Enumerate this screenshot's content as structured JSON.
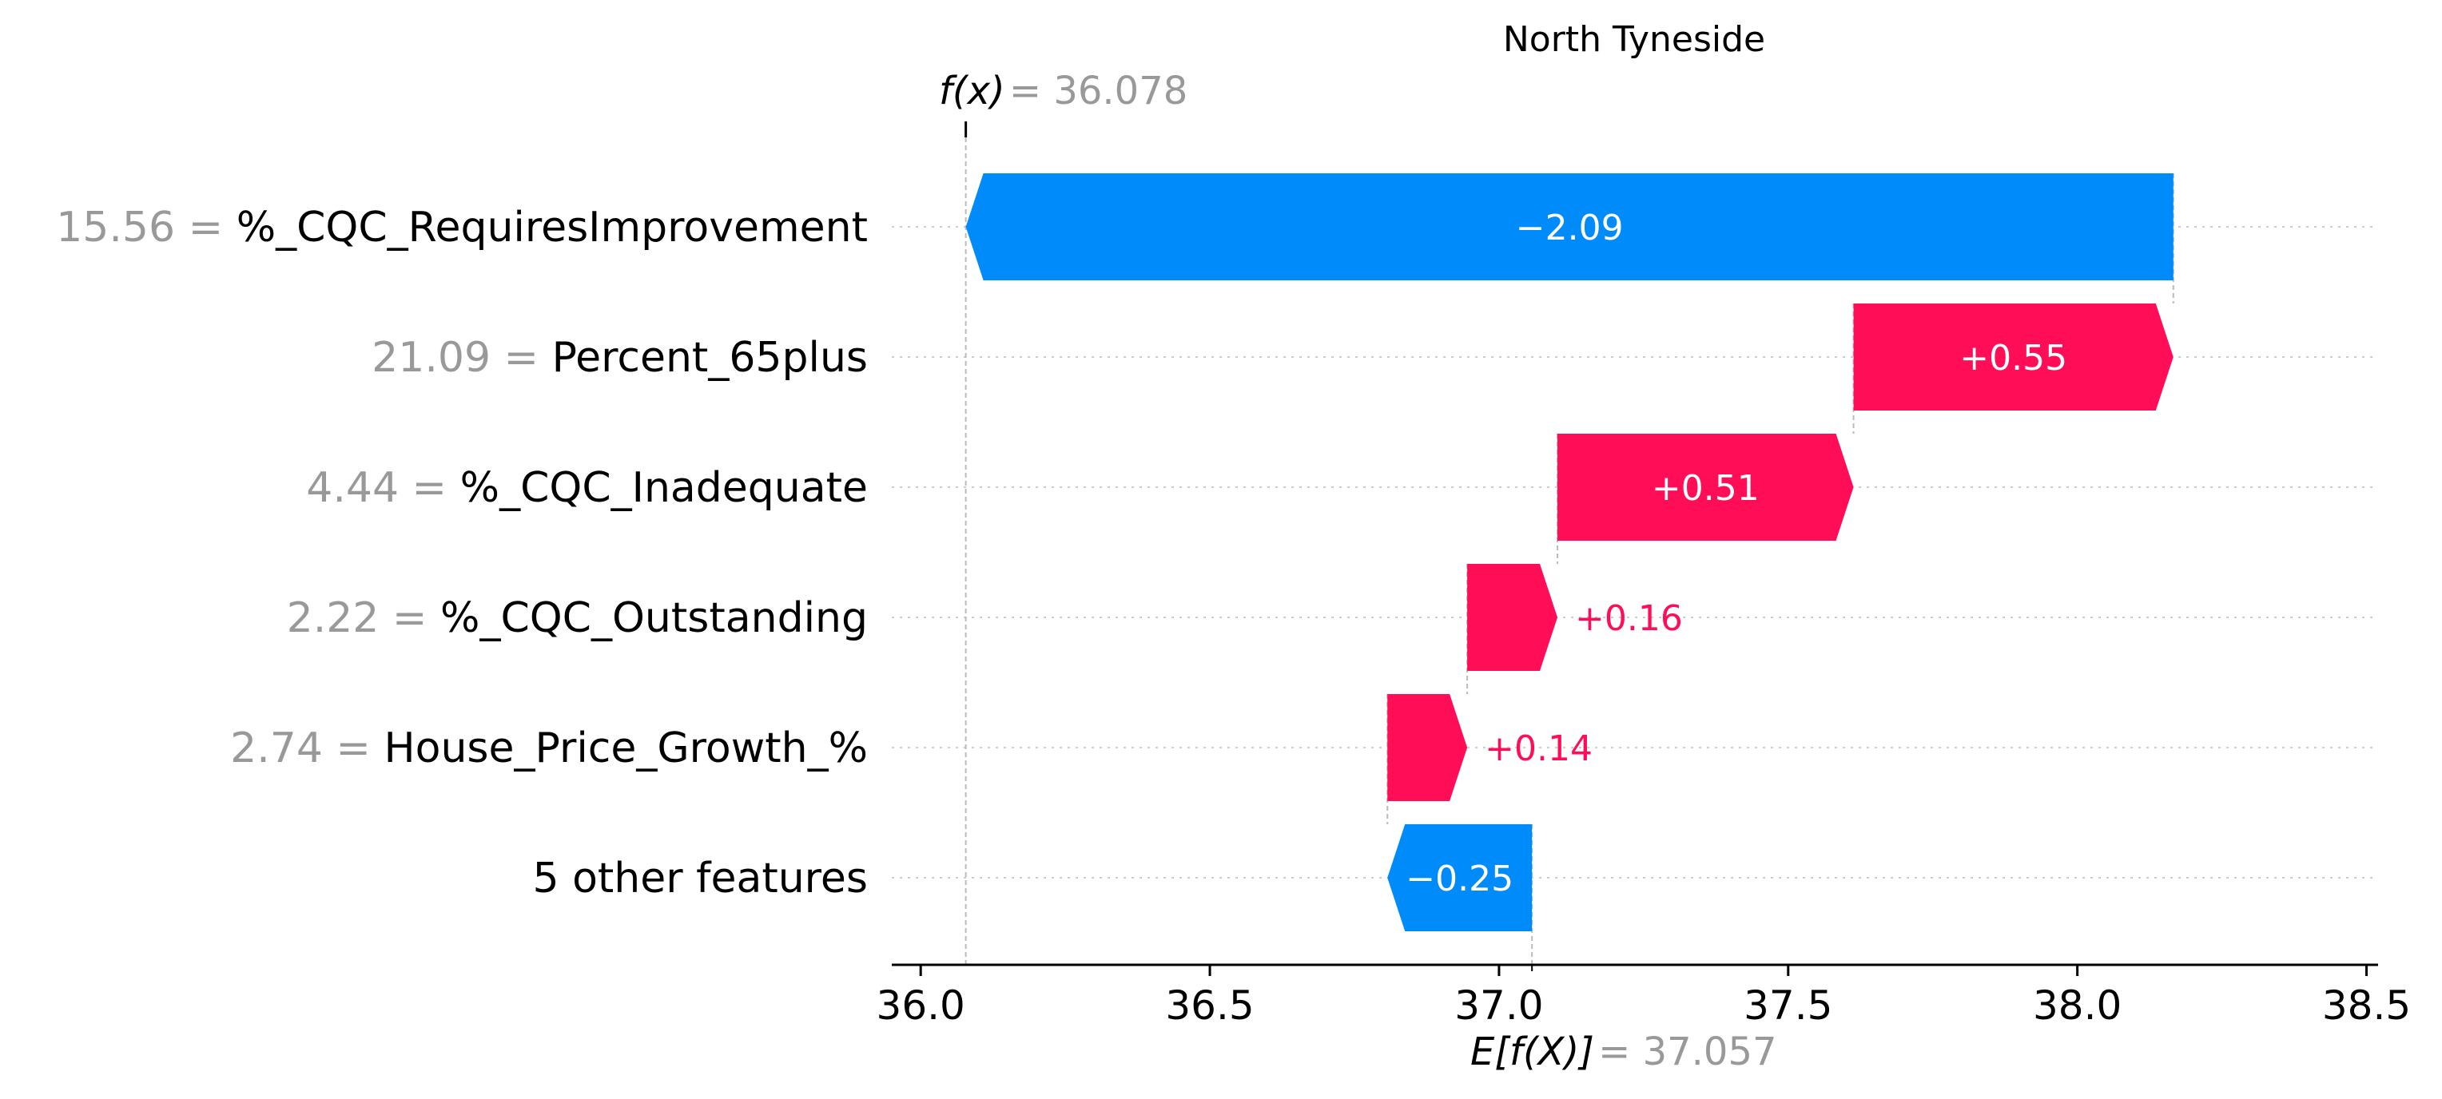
{
  "chart_data": {
    "type": "waterfall",
    "title": "North Tyneside",
    "fx": {
      "label": "f(x)",
      "value": "36.078",
      "number": 36.078
    },
    "expected": {
      "label": "E[f(X)]",
      "value": "37.057",
      "number": 37.057
    },
    "xlim": [
      35.95,
      38.52
    ],
    "xticks": [
      "36.0",
      "36.5",
      "37.0",
      "37.5",
      "38.0",
      "38.5"
    ],
    "features": [
      {
        "value": "15.56",
        "name": "%_CQC_RequiresImprovement",
        "contribution": -2.09,
        "label": "−2.09",
        "start": 38.166,
        "end": 36.078
      },
      {
        "value": "21.09",
        "name": "Percent_65plus",
        "contribution": 0.55,
        "label": "+0.55",
        "start": 37.613,
        "end": 38.166
      },
      {
        "value": "4.44",
        "name": "%_CQC_Inadequate",
        "contribution": 0.51,
        "label": "+0.51",
        "start": 37.101,
        "end": 37.613
      },
      {
        "value": "2.22",
        "name": "%_CQC_Outstanding",
        "contribution": 0.16,
        "label": "+0.16",
        "start": 36.945,
        "end": 37.101
      },
      {
        "value": "2.74",
        "name": "House_Price_Growth_%",
        "contribution": 0.14,
        "label": "+0.14",
        "start": 36.807,
        "end": 36.945
      },
      {
        "value": "",
        "name": "5 other features",
        "contribution": -0.25,
        "label": "−0.25",
        "start": 37.057,
        "end": 36.807
      }
    ],
    "colors": {
      "positive": "#ff0d57",
      "negative": "#008bfb",
      "value_text": "#999999",
      "axis": "#000000",
      "grid": "#cccccc"
    }
  }
}
